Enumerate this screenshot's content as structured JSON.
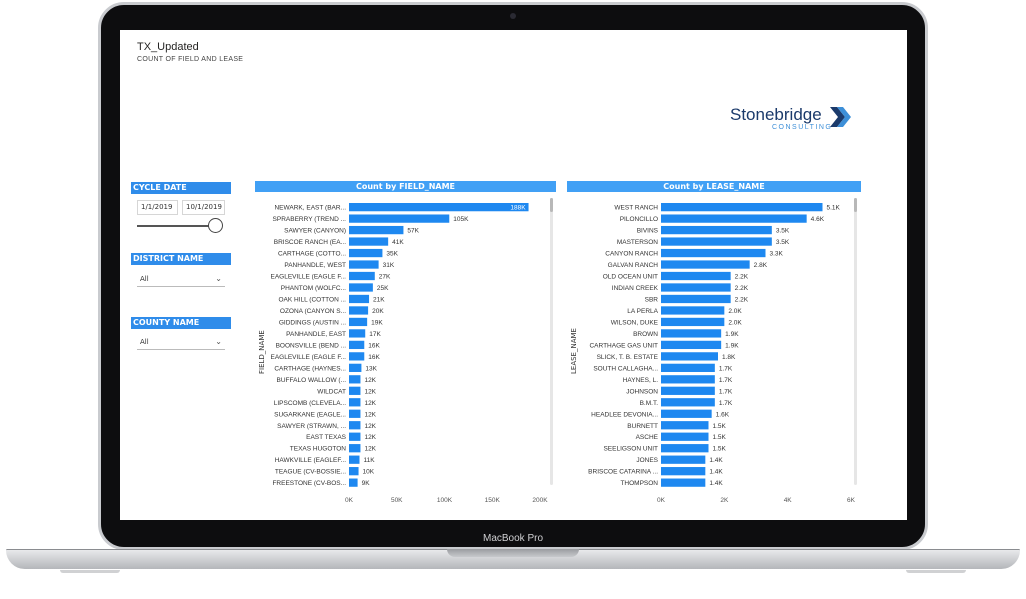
{
  "device": {
    "label": "MacBook Pro"
  },
  "report": {
    "title": "TX_Updated",
    "subtitle": "COUNT OF FIELD AND LEASE",
    "logo": {
      "name": "Stonebridge",
      "tagline": "CONSULTING"
    }
  },
  "slicers": {
    "cycle_date": {
      "label": "CYCLE DATE",
      "start": "1/1/2019",
      "end": "10/1/2019"
    },
    "district": {
      "label": "DISTRICT NAME",
      "value": "All"
    },
    "county": {
      "label": "COUNTY NAME",
      "value": "All"
    }
  },
  "colors": {
    "accent": "#2f8cea",
    "bar": "#1e88f0",
    "header": "#41a0f5"
  },
  "chart_data": [
    {
      "type": "bar",
      "orientation": "horizontal",
      "title": "Count by FIELD_NAME",
      "ylabel": "FIELD_NAME",
      "xlim": [
        0,
        200000
      ],
      "xticks": [
        "0K",
        "50K",
        "100K",
        "150K",
        "200K"
      ],
      "tickvals": [
        0,
        50000,
        100000,
        150000,
        200000
      ],
      "categories": [
        "NEWARK, EAST (BAR...",
        "SPRABERRY (TREND ...",
        "SAWYER (CANYON)",
        "BRISCOE RANCH (EA...",
        "CARTHAGE (COTTO...",
        "PANHANDLE, WEST",
        "EAGLEVILLE (EAGLE F...",
        "PHANTOM (WOLFC...",
        "OAK HILL (COTTON ...",
        "OZONA (CANYON S...",
        "GIDDINGS (AUSTIN ...",
        "PANHANDLE, EAST",
        "BOONSVILLE (BEND ...",
        "EAGLEVILLE (EAGLE F...",
        "CARTHAGE (HAYNES...",
        "BUFFALO WALLOW (...",
        "WILDCAT",
        "LIPSCOMB (CLEVELA...",
        "SUGARKANE (EAGLE...",
        "SAWYER (STRAWN, ...",
        "EAST TEXAS",
        "TEXAS HUGOTON",
        "HAWKVILLE (EAGLEF...",
        "TEAGUE (CV-BOSSIE...",
        "FREESTONE (CV-BOS..."
      ],
      "values": [
        188000,
        105000,
        57000,
        41000,
        35000,
        31000,
        27000,
        25000,
        21000,
        20000,
        19000,
        17000,
        16000,
        16000,
        13000,
        12000,
        12000,
        12000,
        12000,
        12000,
        12000,
        12000,
        11000,
        10000,
        9000
      ],
      "labels": [
        "188K",
        "105K",
        "57K",
        "41K",
        "35K",
        "31K",
        "27K",
        "25K",
        "21K",
        "20K",
        "19K",
        "17K",
        "16K",
        "16K",
        "13K",
        "12K",
        "12K",
        "12K",
        "12K",
        "12K",
        "12K",
        "12K",
        "11K",
        "10K",
        "9K"
      ]
    },
    {
      "type": "bar",
      "orientation": "horizontal",
      "title": "Count by LEASE_NAME",
      "ylabel": "LEASE_NAME",
      "xlim": [
        0,
        6000
      ],
      "xticks": [
        "0K",
        "2K",
        "4K",
        "6K"
      ],
      "tickvals": [
        0,
        2000,
        4000,
        6000
      ],
      "categories": [
        "WEST RANCH",
        "PILONCILLO",
        "BIVINS",
        "MASTERSON",
        "CANYON RANCH",
        "GALVAN RANCH",
        "OLD OCEAN UNIT",
        "INDIAN CREEK",
        "SBR",
        "LA PERLA",
        "WILSON, DUKE",
        "BROWN",
        "CARTHAGE GAS UNIT",
        "SLICK, T. B. ESTATE",
        "SOUTH CALLAGHA...",
        "HAYNES, L.",
        "JOHNSON",
        "B.M.T.",
        "HEADLEE DEVONIA...",
        "BURNETT",
        "ASCHE",
        "SEELIGSON UNIT",
        "JONES",
        "BRISCOE CATARINA ...",
        "THOMPSON"
      ],
      "values": [
        5100,
        4600,
        3500,
        3500,
        3300,
        2800,
        2200,
        2200,
        2200,
        2000,
        2000,
        1900,
        1900,
        1800,
        1700,
        1700,
        1700,
        1700,
        1600,
        1500,
        1500,
        1500,
        1400,
        1400,
        1400
      ],
      "labels": [
        "5.1K",
        "4.6K",
        "3.5K",
        "3.5K",
        "3.3K",
        "2.8K",
        "2.2K",
        "2.2K",
        "2.2K",
        "2.0K",
        "2.0K",
        "1.9K",
        "1.9K",
        "1.8K",
        "1.7K",
        "1.7K",
        "1.7K",
        "1.7K",
        "1.6K",
        "1.5K",
        "1.5K",
        "1.5K",
        "1.4K",
        "1.4K",
        "1.4K"
      ]
    }
  ]
}
